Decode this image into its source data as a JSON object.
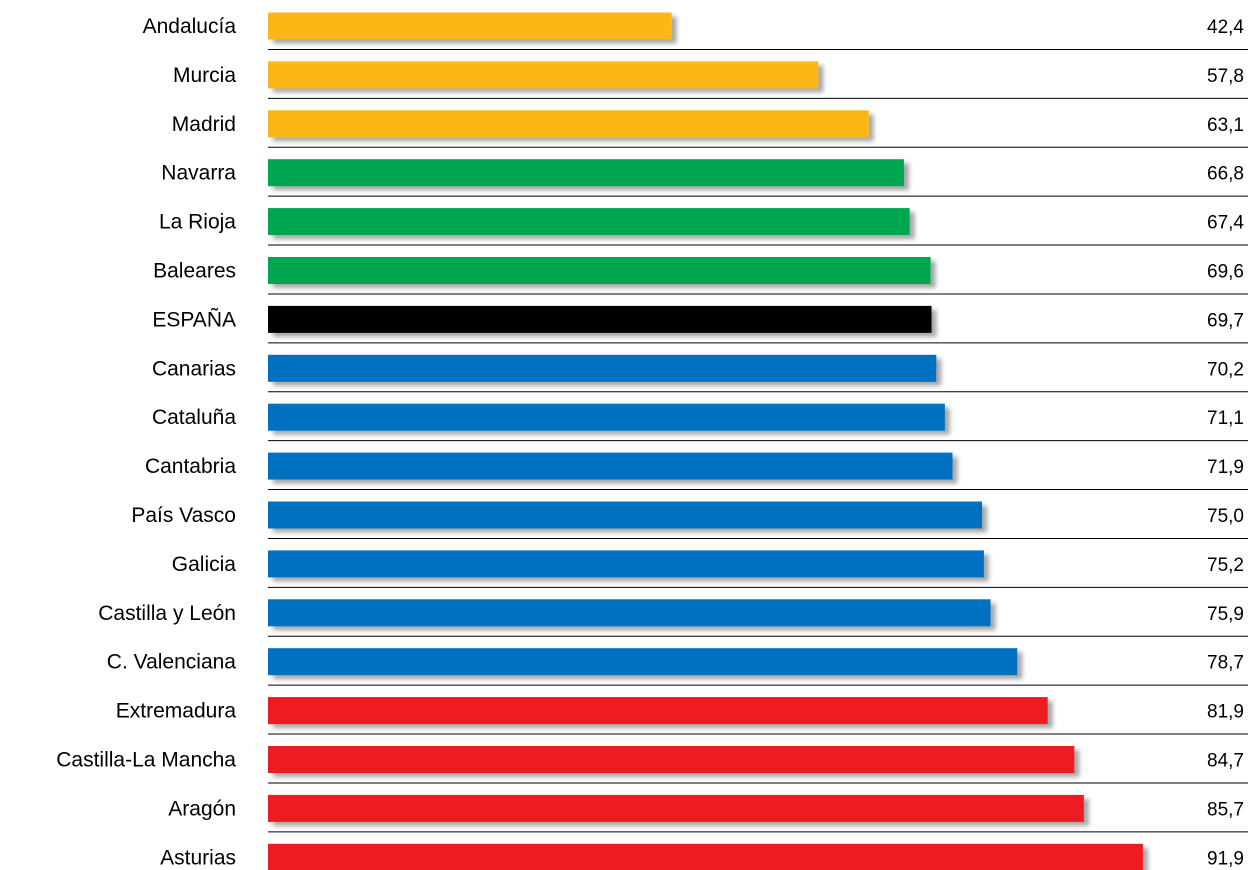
{
  "chart_data": {
    "type": "bar",
    "orientation": "horizontal",
    "title": "",
    "xlabel": "",
    "ylabel": "",
    "xlim": [
      0,
      100
    ],
    "grid": false,
    "legend": "none",
    "value_format": "comma-decimal",
    "categories": [
      "Andalucía",
      "Murcia",
      "Madrid",
      "Navarra",
      "La Rioja",
      "Baleares",
      "ESPAÑA",
      "Canarias",
      "Cataluña",
      "Cantabria",
      "País Vasco",
      "Galicia",
      "Castilla y León",
      "C. Valenciana",
      "Extremadura",
      "Castilla-La Mancha",
      "Aragón",
      "Asturias"
    ],
    "values": [
      42.4,
      57.8,
      63.1,
      66.8,
      67.4,
      69.6,
      69.7,
      70.2,
      71.1,
      71.9,
      75.0,
      75.2,
      75.9,
      78.7,
      81.9,
      84.7,
      85.7,
      91.9
    ],
    "value_labels": [
      "42,4",
      "57,8",
      "63,1",
      "66,8",
      "67,4",
      "69,6",
      "69,7",
      "70,2",
      "71,1",
      "71,9",
      "75,0",
      "75,2",
      "75,9",
      "78,7",
      "81,9",
      "84,7",
      "85,7",
      "91,9"
    ],
    "bar_colors": [
      "#fbb718",
      "#fbb718",
      "#fbb718",
      "#00a650",
      "#00a650",
      "#00a650",
      "#000000",
      "#0070c0",
      "#0070c0",
      "#0070c0",
      "#0070c0",
      "#0070c0",
      "#0070c0",
      "#0070c0",
      "#ed1c24",
      "#ed1c24",
      "#ed1c24",
      "#ed1c24"
    ],
    "separator_color": "#000000"
  }
}
